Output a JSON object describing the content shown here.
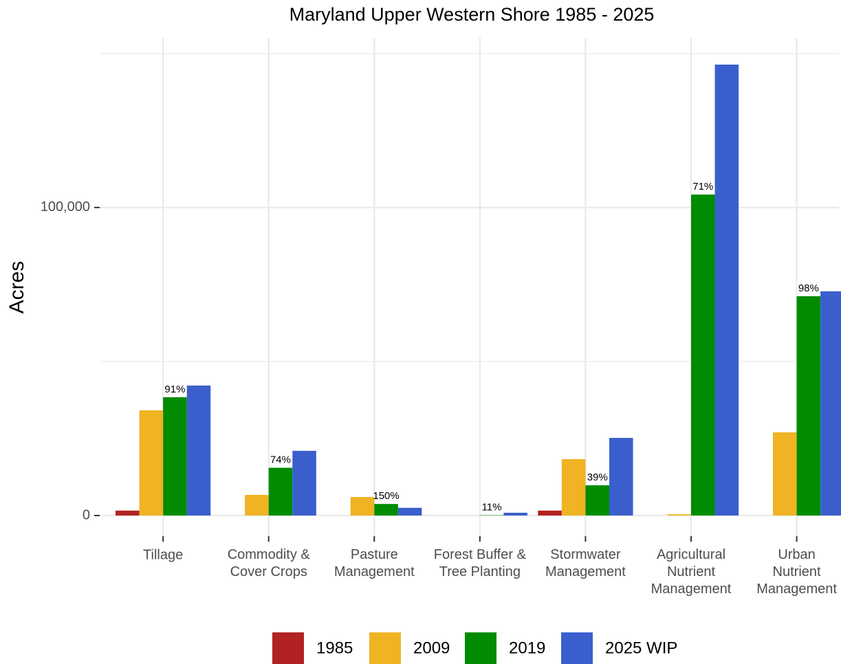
{
  "chart_data": {
    "type": "bar",
    "title": "Maryland Upper Western Shore 1985 - 2025",
    "y_label": "Acres",
    "categories": [
      "Tillage",
      "Commodity &\nCover Crops",
      "Pasture\nManagement",
      "Forest Buffer &\nTree Planting",
      "Stormwater\nManagement",
      "Agricultural\nNutrient\nManagement",
      "Urban\nNutrient\nManagement"
    ],
    "series": [
      {
        "name": "1985",
        "color": "#b22222",
        "values": [
          1600,
          0,
          0,
          0,
          1600,
          0,
          0
        ]
      },
      {
        "name": "2009",
        "color": "#efb324",
        "values": [
          34150,
          6700,
          6000,
          0,
          18300,
          400,
          27000
        ]
      },
      {
        "name": "2019",
        "color": "#008b00",
        "values": [
          38400,
          15500,
          3750,
          100,
          9800,
          104200,
          71200
        ]
      },
      {
        "name": "2025 WIP",
        "color": "#3a5fcd",
        "values": [
          42200,
          21000,
          2500,
          900,
          25200,
          146400,
          72800
        ]
      }
    ],
    "annotations": [
      "91%",
      "74%",
      "150%",
      "11%",
      "39%",
      "71%",
      "98%"
    ],
    "ylim": [
      -6700,
      155100
    ],
    "yticks": [
      0,
      {
        "value": 100000,
        "label": "100,000"
      }
    ],
    "minor_yticks": [
      50000,
      150000
    ],
    "grid": true,
    "legend": "bottom"
  }
}
